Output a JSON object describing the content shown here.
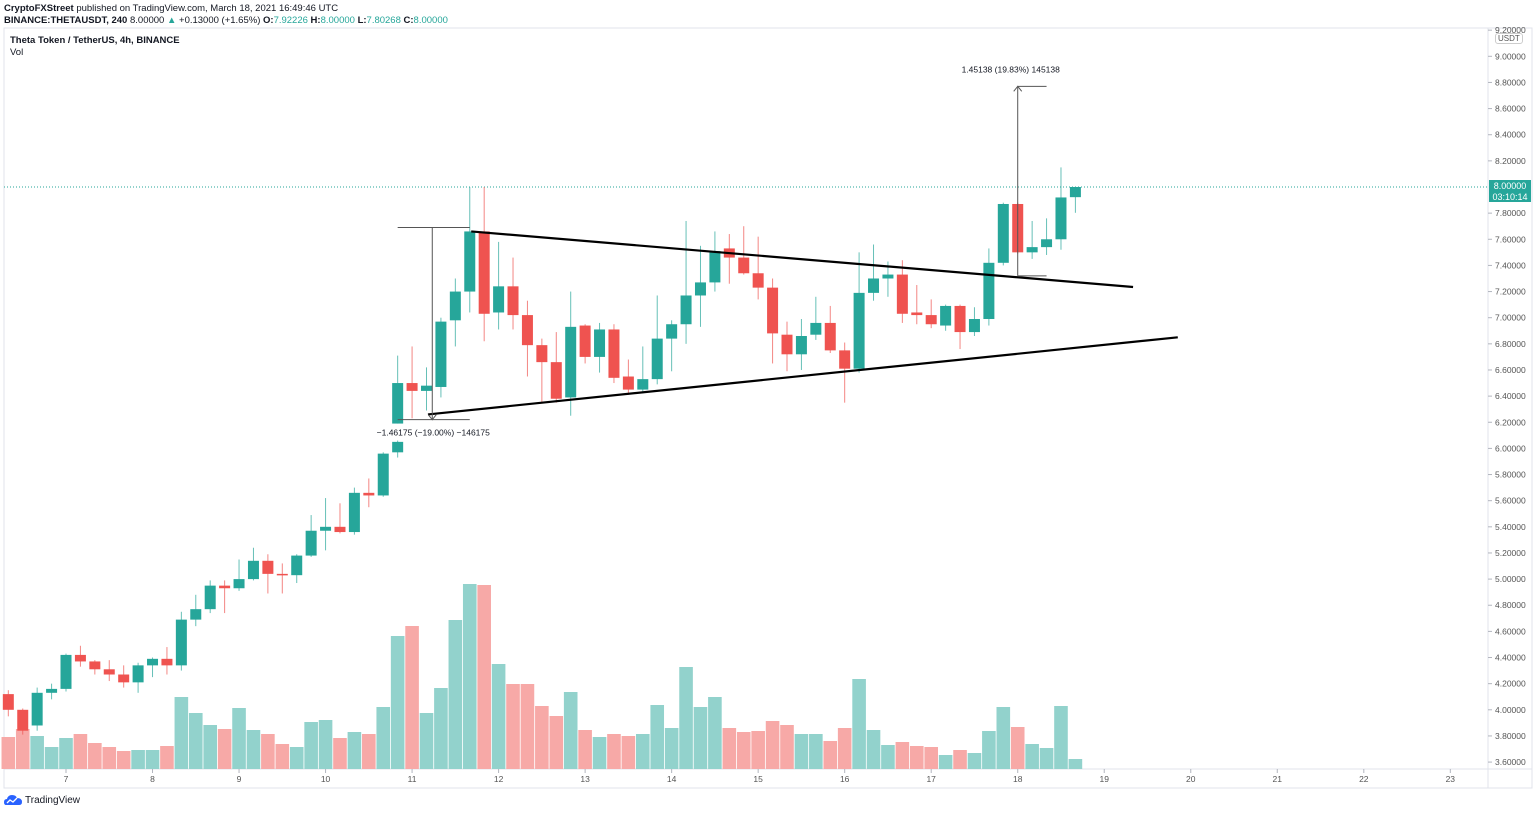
{
  "header": {
    "publisher": "CryptoFXStreet",
    "published_text": "published on TradingView.com, March 18, 2021 16:49:46 UTC",
    "symbol": "BINANCE:THETAUSDT, 240",
    "last": "8.00000",
    "change_arrow": "▲",
    "change": "+0.13000 (+1.65%)",
    "o_label": "O:",
    "o": "7.92226",
    "h_label": "H:",
    "h": "8.00000",
    "l_label": "L:",
    "l": "7.80268",
    "c_label": "C:",
    "c": "8.00000"
  },
  "legend": {
    "title": "Theta Token / TetherUS, 4h, BINANCE",
    "indicator": "Vol"
  },
  "price_axis": {
    "currency": "USDT",
    "last_price": "8.00000",
    "countdown": "03:10:14"
  },
  "footer": {
    "brand": "TradingView"
  },
  "colors": {
    "up": "#26a69a",
    "down": "#ef5350",
    "up_vol": "#92d2cc",
    "down_vol": "#f7a9a7"
  },
  "chart_data": {
    "type": "candlestick",
    "title": "Theta Token / TetherUS, 4h, BINANCE",
    "interval": "4h",
    "x_unit": "4h candle index (0 = March 7 00:00)",
    "ylim": [
      3.55,
      9.25
    ],
    "y_ticks": [
      "9.20000",
      "9.00000",
      "8.80000",
      "8.60000",
      "8.40000",
      "8.20000",
      "7.80000",
      "7.60000",
      "7.40000",
      "7.20000",
      "7.00000",
      "6.80000",
      "6.60000",
      "6.40000",
      "6.20000",
      "6.00000",
      "5.80000",
      "5.60000",
      "5.40000",
      "5.20000",
      "5.00000",
      "4.80000",
      "4.60000",
      "4.40000",
      "4.20000",
      "4.00000",
      "3.80000",
      "3.60000"
    ],
    "x_ticks": [
      {
        "label": "7",
        "i": 0
      },
      {
        "label": "8",
        "i": 6
      },
      {
        "label": "9",
        "i": 12
      },
      {
        "label": "10",
        "i": 18
      },
      {
        "label": "11",
        "i": 24
      },
      {
        "label": "12",
        "i": 30
      },
      {
        "label": "13",
        "i": 36
      },
      {
        "label": "14",
        "i": 42
      },
      {
        "label": "15",
        "i": 48
      },
      {
        "label": "16",
        "i": 54
      },
      {
        "label": "17",
        "i": 60
      },
      {
        "label": "18",
        "i": 66
      },
      {
        "label": "19",
        "i": 72
      },
      {
        "label": "20",
        "i": 78
      },
      {
        "label": "21",
        "i": 84
      },
      {
        "label": "22",
        "i": 90
      },
      {
        "label": "23",
        "i": 96
      }
    ],
    "candle_fields": [
      "i",
      "open",
      "high",
      "low",
      "close",
      "volume_relative"
    ],
    "candles": [
      [
        -4,
        4.12,
        4.15,
        3.95,
        4.0,
        32
      ],
      [
        -3,
        4.0,
        4.01,
        3.81,
        3.84,
        40
      ],
      [
        -2,
        3.88,
        4.17,
        3.84,
        4.13,
        33
      ],
      [
        -1,
        4.13,
        4.2,
        4.08,
        4.16,
        22
      ],
      [
        0,
        4.16,
        4.43,
        4.14,
        4.42,
        31
      ],
      [
        1,
        4.42,
        4.49,
        4.33,
        4.37,
        35
      ],
      [
        2,
        4.37,
        4.38,
        4.27,
        4.31,
        26
      ],
      [
        3,
        4.31,
        4.38,
        4.22,
        4.27,
        22
      ],
      [
        4,
        4.27,
        4.34,
        4.17,
        4.21,
        18
      ],
      [
        5,
        4.21,
        4.36,
        4.13,
        4.34,
        19
      ],
      [
        6,
        4.34,
        4.4,
        4.25,
        4.39,
        19
      ],
      [
        7,
        4.39,
        4.48,
        4.27,
        4.34,
        23
      ],
      [
        8,
        4.34,
        4.75,
        4.3,
        4.69,
        72
      ],
      [
        9,
        4.69,
        4.88,
        4.64,
        4.77,
        56
      ],
      [
        10,
        4.77,
        4.99,
        4.74,
        4.95,
        44
      ],
      [
        11,
        4.95,
        4.99,
        4.74,
        4.93,
        40
      ],
      [
        12,
        4.93,
        5.15,
        4.91,
        5.0,
        61
      ],
      [
        13,
        5.0,
        5.24,
        4.99,
        5.14,
        39
      ],
      [
        14,
        5.14,
        5.19,
        4.89,
        5.04,
        35
      ],
      [
        15,
        5.04,
        5.12,
        4.89,
        5.03,
        25
      ],
      [
        16,
        5.03,
        5.19,
        4.97,
        5.18,
        22
      ],
      [
        17,
        5.18,
        5.49,
        5.17,
        5.37,
        47
      ],
      [
        18,
        5.37,
        5.62,
        5.22,
        5.4,
        49
      ],
      [
        19,
        5.4,
        5.58,
        5.35,
        5.36,
        31
      ],
      [
        20,
        5.36,
        5.7,
        5.34,
        5.66,
        37
      ],
      [
        21,
        5.66,
        5.77,
        5.55,
        5.64,
        35
      ],
      [
        22,
        5.64,
        5.97,
        5.63,
        5.96,
        62
      ],
      [
        23,
        5.97,
        6.06,
        5.93,
        6.05,
        null
      ],
      [
        23,
        6.19,
        6.71,
        6.19,
        6.5,
        133
      ],
      [
        24,
        6.5,
        6.78,
        6.23,
        6.44,
        143
      ],
      [
        25,
        6.44,
        6.62,
        6.29,
        6.48,
        56
      ],
      [
        26,
        6.47,
        7.0,
        6.39,
        6.97,
        81
      ],
      [
        27,
        6.98,
        7.3,
        6.78,
        7.2,
        149
      ],
      [
        28,
        7.2,
        8.0,
        7.04,
        7.66,
        185
      ],
      [
        29,
        7.66,
        8.0,
        6.82,
        7.03,
        184
      ],
      [
        30,
        7.04,
        7.58,
        6.91,
        7.24,
        105
      ],
      [
        31,
        7.24,
        7.46,
        6.91,
        7.02,
        85
      ],
      [
        32,
        7.02,
        7.13,
        6.55,
        6.79,
        85
      ],
      [
        33,
        6.79,
        6.84,
        6.35,
        6.66,
        63
      ],
      [
        34,
        6.66,
        6.89,
        6.35,
        6.38,
        53
      ],
      [
        35,
        6.39,
        7.2,
        6.25,
        6.93,
        77
      ],
      [
        36,
        6.94,
        6.95,
        6.65,
        6.7,
        39
      ],
      [
        37,
        6.7,
        6.96,
        6.58,
        6.91,
        32
      ],
      [
        38,
        6.91,
        6.95,
        6.5,
        6.54,
        35
      ],
      [
        39,
        6.55,
        6.68,
        6.41,
        6.45,
        33
      ],
      [
        40,
        6.45,
        6.78,
        6.42,
        6.53,
        35
      ],
      [
        41,
        6.53,
        7.17,
        6.49,
        6.84,
        64
      ],
      [
        42,
        6.84,
        6.98,
        6.59,
        6.95,
        41
      ],
      [
        43,
        6.95,
        7.74,
        6.8,
        7.17,
        102
      ],
      [
        44,
        7.17,
        7.55,
        6.93,
        7.27,
        62
      ],
      [
        45,
        7.27,
        7.66,
        7.2,
        7.51,
        72
      ],
      [
        46,
        7.53,
        7.64,
        7.26,
        7.46,
        41
      ],
      [
        47,
        7.46,
        7.7,
        7.33,
        7.34,
        37
      ],
      [
        48,
        7.34,
        7.62,
        7.14,
        7.23,
        38
      ],
      [
        49,
        7.23,
        7.3,
        6.65,
        6.88,
        48
      ],
      [
        50,
        6.87,
        6.97,
        6.59,
        6.72,
        44
      ],
      [
        51,
        6.72,
        6.99,
        6.6,
        6.86,
        35
      ],
      [
        52,
        6.87,
        7.16,
        6.83,
        6.96,
        35
      ],
      [
        53,
        6.96,
        7.09,
        6.73,
        6.75,
        28
      ],
      [
        54,
        6.75,
        6.81,
        6.35,
        6.61,
        41
      ],
      [
        55,
        6.61,
        7.5,
        6.58,
        7.19,
        90
      ],
      [
        56,
        7.19,
        7.56,
        7.13,
        7.3,
        39
      ],
      [
        57,
        7.3,
        7.43,
        7.16,
        7.33,
        24
      ],
      [
        58,
        7.33,
        7.44,
        6.96,
        7.03,
        27
      ],
      [
        59,
        7.04,
        7.25,
        6.95,
        7.02,
        23
      ],
      [
        60,
        7.02,
        7.14,
        6.92,
        6.95,
        22
      ],
      [
        61,
        6.94,
        7.1,
        6.9,
        7.09,
        14
      ],
      [
        62,
        7.09,
        7.1,
        6.76,
        6.89,
        19
      ],
      [
        63,
        6.89,
        7.08,
        6.86,
        6.99,
        16
      ],
      [
        64,
        6.99,
        7.53,
        6.94,
        7.42,
        38
      ],
      [
        65,
        7.42,
        7.88,
        7.4,
        7.87,
        62
      ],
      [
        66,
        7.87,
        7.88,
        7.49,
        7.5,
        42
      ],
      [
        67,
        7.5,
        7.74,
        7.45,
        7.54,
        25
      ],
      [
        68,
        7.54,
        7.76,
        7.48,
        7.6,
        21
      ],
      [
        69,
        7.6,
        8.15,
        7.52,
        7.92,
        63
      ],
      [
        70,
        7.92226,
        8.0,
        7.80268,
        8.0,
        10
      ]
    ],
    "trendlines": [
      {
        "name": "upper-trendline",
        "from": {
          "i": 28.1,
          "price": 7.66
        },
        "to": {
          "i": 74.0,
          "price": 7.235
        }
      },
      {
        "name": "lower-trendline",
        "from": {
          "i": 25.1,
          "price": 6.26
        },
        "to": {
          "i": 77.1,
          "price": 6.85
        }
      }
    ],
    "measurements": [
      {
        "name": "measure-down",
        "i_from": 23,
        "i_to": 28,
        "i_line": 25.4,
        "price_from": 7.69,
        "price_to": 6.22,
        "label": "−1.46175 (−19.00%) −146175"
      },
      {
        "name": "measure-up",
        "i_from": 66,
        "i_to": 68,
        "i_line": 66,
        "price_from": 7.32,
        "price_to": 8.77,
        "label": "1.45138 (19.83%) 145138"
      }
    ],
    "last_price_line": 8.0
  }
}
